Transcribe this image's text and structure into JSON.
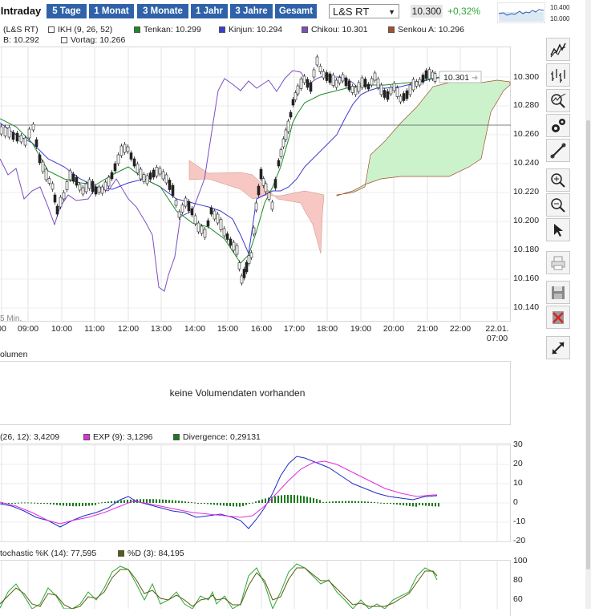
{
  "toolbar": {
    "tabs": [
      {
        "label": "Intraday",
        "active": true
      },
      {
        "label": "5 Tage"
      },
      {
        "label": "1 Monat"
      },
      {
        "label": "3 Monate"
      },
      {
        "label": "1 Jahr"
      },
      {
        "label": "3 Jahre"
      },
      {
        "label": "Gesamt"
      }
    ],
    "symbol": "L&S RT",
    "price": "10.300",
    "change": "+0,32%",
    "mini_chart_labels": [
      "10.400",
      "10.000"
    ]
  },
  "legend": {
    "row1": {
      "source": "(L&S RT)",
      "ikh": "IKH (9, 26, 52)",
      "tenkan": "Tenkan: 10.299",
      "kinjun": "Kinjun: 10.294",
      "chikou": "Chikou: 10.301",
      "senkou_a": "Senkou A: 10.296"
    },
    "row2": {
      "senkou_b": "B: 10.292",
      "vortag": "Vortag: 10.266"
    },
    "colors": {
      "tenkan": "#1d8a2a",
      "kinjun": "#3b3bd6",
      "chikou": "#7b4fc0",
      "senkou_a": "#a0522d",
      "cloud_up": "#ccf2cc",
      "cloud_down": "#f7c8c3"
    }
  },
  "main_chart": {
    "last_value_tag": "10.301",
    "interval_label": "5 Min.",
    "y_ticks": [
      "10.300",
      "10.280",
      "10.260",
      "10.240",
      "10.220",
      "10.200",
      "10.180",
      "10.160",
      "10.140"
    ],
    "x_ticks": [
      "00",
      "09:00",
      "10:00",
      "11:00",
      "12:00",
      "13:00",
      "14:00",
      "15:00",
      "16:00",
      "17:00",
      "18:00",
      "19:00",
      "20:00",
      "21:00",
      "22:00"
    ],
    "x_tick_last": [
      "22.01.",
      "07:00"
    ]
  },
  "volume": {
    "title": "olumen",
    "message": "keine Volumendaten vorhanden"
  },
  "macd": {
    "legend_main": "(26, 12): 3,4209",
    "legend_exp": "EXP (9): 3,1296",
    "legend_div": "Divergence: 0,29131",
    "y_ticks": [
      "30",
      "20",
      "10",
      "0",
      "-10",
      "-20"
    ],
    "colors": {
      "main": "#1f2fc4",
      "exp": "#e22ce2",
      "div": "#1c7a1c"
    }
  },
  "stochastic": {
    "legend_k": "tochastic %K (14): 77,595",
    "legend_d": "%D (3): 84,195",
    "y_ticks": [
      "100",
      "80",
      "60"
    ]
  },
  "sidebar": {
    "buttons": [
      "line-chart-icon",
      "ohlc-chart-icon",
      "indicator-zoom-icon",
      "settings-icon",
      "draw-tool-icon",
      "zoom-in-icon",
      "zoom-out-icon",
      "pointer-icon",
      "print-icon",
      "save-icon",
      "delete-icon",
      "fullscreen-icon"
    ]
  }
}
